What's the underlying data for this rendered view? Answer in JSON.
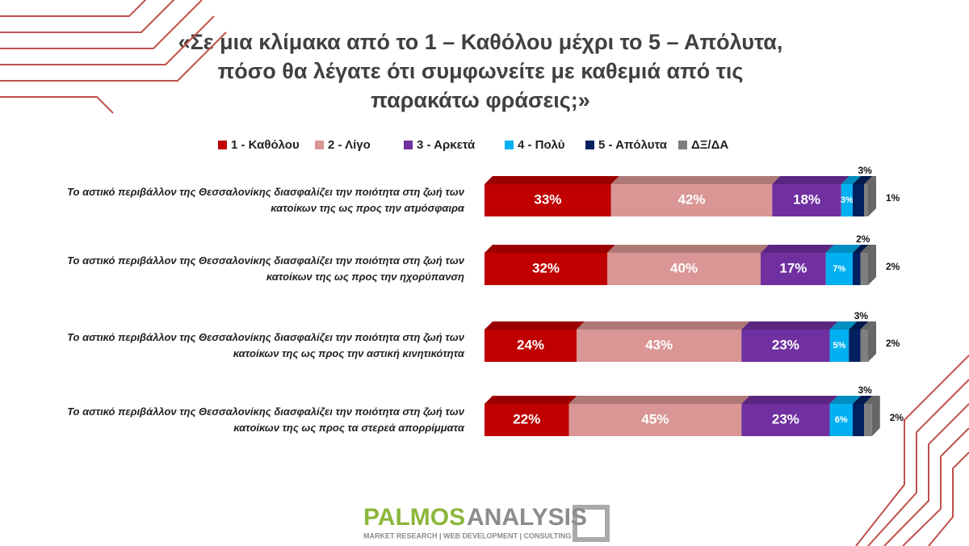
{
  "chart_data": {
    "type": "stacked-barh",
    "title": "«Σε μια κλίμακα από το 1 – Καθόλου μέχρι το 5 – Απόλυτα, πόσο θα λέγατε ότι συμφωνείτε με καθεμιά από τις παρακάτω φράσεις;»",
    "categories": [
      "Το αστικό περιβάλλον της Θεσσαλονίκης διασφαλίζει την ποιότητα στη ζωή των κατοίκων της ως προς την ατμόσφαιρα",
      "Το αστικό περιβάλλον της Θεσσαλονίκης διασφαλίζει την ποιότητα στη ζωή των κατοίκων της ως προς την ηχορύπανση",
      "Το αστικό περιβάλλον της Θεσσαλονίκης διασφαλίζει την ποιότητα στη ζωή των κατοίκων της ως προς την αστική κινητικότητα",
      "Το αστικό περιβάλλον της Θεσσαλονίκης διασφαλίζει την ποιότητα στη ζωή των κατοίκων της ως προς τα στερεά απορρίμματα"
    ],
    "series": [
      {
        "name": "1 - Καθόλου",
        "color": "#c00000",
        "values": [
          33,
          32,
          24,
          22
        ],
        "value_labels": [
          "33%",
          "32%",
          "24%",
          "22%"
        ]
      },
      {
        "name": "2 - Λίγο",
        "color": "#d99694",
        "values": [
          42,
          40,
          43,
          45
        ],
        "value_labels": [
          "42%",
          "40%",
          "43%",
          "45%"
        ]
      },
      {
        "name": "3 - Αρκετά",
        "color": "#7030a0",
        "values": [
          18,
          17,
          23,
          23
        ],
        "value_labels": [
          "18%",
          "17%",
          "23%",
          "23%"
        ]
      },
      {
        "name": "4 - Πολύ",
        "color": "#00b0f0",
        "values": [
          3,
          7,
          5,
          6
        ],
        "value_labels": [
          "3%",
          "7%",
          "5%",
          "6%"
        ]
      },
      {
        "name": "5 - Απόλυτα",
        "color": "#002060",
        "values": [
          3,
          2,
          3,
          3
        ],
        "value_labels": [
          "3%",
          "2%",
          "3%",
          "3%"
        ]
      },
      {
        "name": "ΔΞ/ΔΑ",
        "color": "#7f7f7f",
        "values": [
          1,
          2,
          2,
          2
        ],
        "value_labels": [
          "1%",
          "2%",
          "2%",
          "2%"
        ]
      }
    ]
  },
  "logo": {
    "name_a": "PALMOS",
    "name_b": "ANALYSIS",
    "tagline": "MARKET RESEARCH | WEB DEVELOPMENT | CONSULTING"
  }
}
